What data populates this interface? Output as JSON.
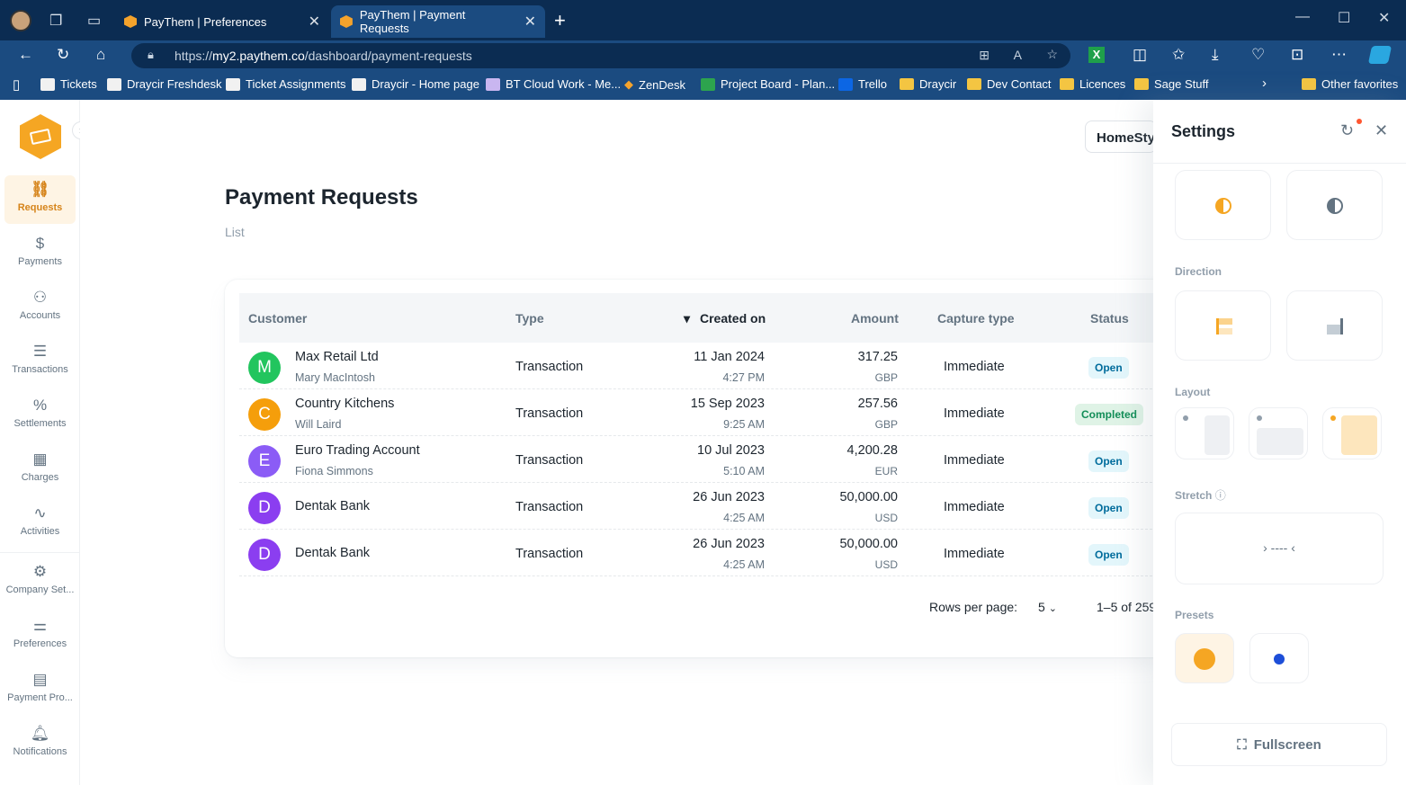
{
  "browser": {
    "tabs": [
      {
        "label": "PayThem | Preferences"
      },
      {
        "label": "PayThem | Payment Requests"
      }
    ],
    "url_prefix": "https://",
    "url_domain": "my2.paythem.co",
    "url_path": "/dashboard/payment-requests",
    "bookmarks": [
      "Tickets",
      "Draycir Freshdesk",
      "Ticket Assignments",
      "Draycir - Home page",
      "BT Cloud Work - Me...",
      "ZenDesk",
      "Project Board - Plan...",
      "Trello",
      "Draycir",
      "Dev Contact",
      "Licences",
      "Sage Stuff",
      "Other favorites"
    ]
  },
  "sidebar": {
    "items": [
      {
        "label": "Requests",
        "icon": "link-icon"
      },
      {
        "label": "Payments",
        "icon": "piggy-bank-icon"
      },
      {
        "label": "Accounts",
        "icon": "users-icon"
      },
      {
        "label": "Transactions",
        "icon": "receipt-icon"
      },
      {
        "label": "Settlements",
        "icon": "percent-icon"
      },
      {
        "label": "Charges",
        "icon": "calculator-icon"
      },
      {
        "label": "Activities",
        "icon": "activity-icon"
      },
      {
        "label": "Company Set...",
        "icon": "gear-icon"
      },
      {
        "label": "Preferences",
        "icon": "sliders-icon"
      },
      {
        "label": "Payment Pro...",
        "icon": "provider-icon"
      },
      {
        "label": "Notifications",
        "icon": "bell-icon"
      }
    ]
  },
  "header": {
    "company": "HomeStyl",
    "title": "Payment Requests",
    "breadcrumb": "List"
  },
  "table": {
    "columns": [
      "Customer",
      "Type",
      "Created on",
      "Amount",
      "Capture type",
      "Status"
    ],
    "rows": [
      {
        "initial": "M",
        "color": "#22c55e",
        "name": "Max Retail Ltd",
        "contact": "Mary MacIntosh",
        "type": "Transaction",
        "date": "11 Jan 2024",
        "time": "4:27 PM",
        "amount": "317.25",
        "currency": "GBP",
        "capture": "Immediate",
        "status": "Open"
      },
      {
        "initial": "C",
        "color": "#f59e0b",
        "name": "Country Kitchens",
        "contact": "Will Laird",
        "type": "Transaction",
        "date": "15 Sep 2023",
        "time": "9:25 AM",
        "amount": "257.56",
        "currency": "GBP",
        "capture": "Immediate",
        "status": "Completed"
      },
      {
        "initial": "E",
        "color": "#8b5cf6",
        "name": "Euro Trading Account",
        "contact": "Fiona Simmons",
        "type": "Transaction",
        "date": "10 Jul 2023",
        "time": "5:10 AM",
        "amount": "4,200.28",
        "currency": "EUR",
        "capture": "Immediate",
        "status": "Open"
      },
      {
        "initial": "D",
        "color": "#8b3ef0",
        "name": "Dentak Bank",
        "contact": "",
        "type": "Transaction",
        "date": "26 Jun 2023",
        "time": "4:25 AM",
        "amount": "50,000.00",
        "currency": "USD",
        "capture": "Immediate",
        "status": "Open"
      },
      {
        "initial": "D",
        "color": "#8b3ef0",
        "name": "Dentak Bank",
        "contact": "",
        "type": "Transaction",
        "date": "26 Jun 2023",
        "time": "4:25 AM",
        "amount": "50,000.00",
        "currency": "USD",
        "capture": "Immediate",
        "status": "Open"
      }
    ],
    "rows_per_page_label": "Rows per page:",
    "rows_per_page": "5",
    "range": "1–5 of 259"
  },
  "settings": {
    "title": "Settings",
    "sections": {
      "direction": "Direction",
      "layout": "Layout",
      "stretch": "Stretch",
      "presets": "Presets"
    },
    "fullscreen": "Fullscreen",
    "accent": "#f5a623",
    "preset_colors": [
      "#f5a623",
      "#1d4ed8"
    ]
  }
}
